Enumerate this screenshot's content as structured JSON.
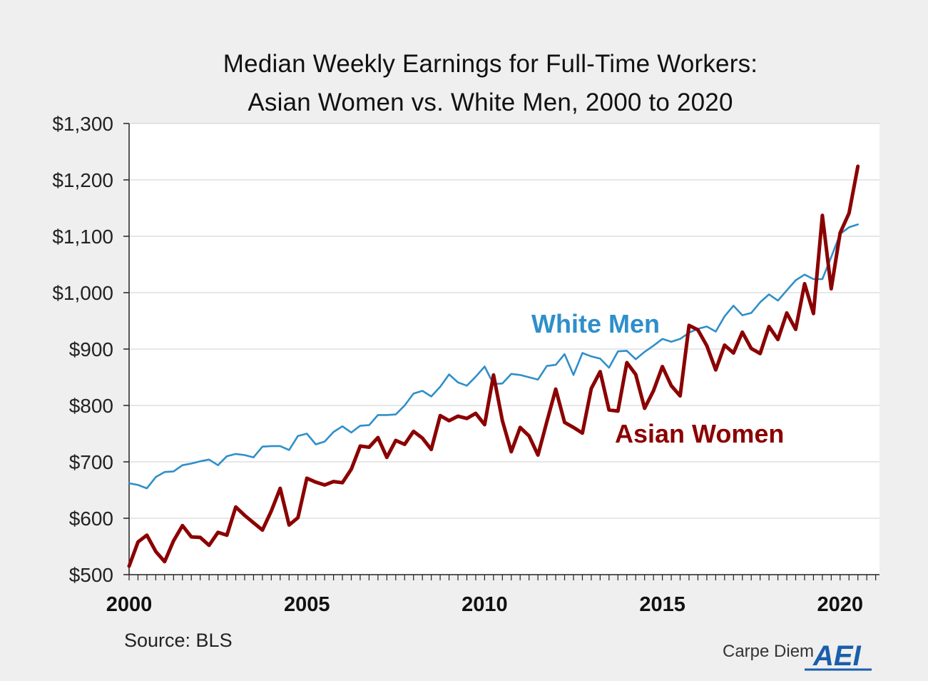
{
  "colors": {
    "white_men": "#2f8fc9",
    "asian_women": "#8b0000",
    "background": "#efefef",
    "plot_background": "#ffffff",
    "gridline": "#cfcfcf",
    "axis": "#222222",
    "logo": "#1a5eab"
  },
  "chart_data": {
    "type": "line",
    "title": "Median Weekly Earnings for Full-Time Workers:",
    "subtitle": "Asian Women vs. White Men, 2000 to 2020",
    "xlabel": "",
    "ylabel": "",
    "frequency": "quarterly",
    "x_start": 2000,
    "x_tick_labels": [
      "2000",
      "2005",
      "2010",
      "2015",
      "2020"
    ],
    "ylim": [
      500,
      1300
    ],
    "y_ticks": [
      500,
      600,
      700,
      800,
      900,
      1000,
      1100,
      1200,
      1300
    ],
    "y_tick_labels": [
      "$500",
      "$600",
      "$700",
      "$800",
      "$900",
      "$1,000",
      "$1,100",
      "$1,200",
      "$1,300"
    ],
    "grid": true,
    "series": [
      {
        "name": "White Men",
        "color": "#2f8fc9",
        "values": [
          662,
          659,
          653,
          673,
          682,
          683,
          694,
          697,
          701,
          704,
          694,
          710,
          714,
          712,
          708,
          727,
          728,
          728,
          721,
          746,
          750,
          731,
          736,
          753,
          763,
          752,
          764,
          765,
          783,
          783,
          784,
          800,
          821,
          826,
          816,
          833,
          855,
          841,
          835,
          851,
          869,
          838,
          839,
          856,
          854,
          850,
          846,
          870,
          872,
          891,
          854,
          893,
          887,
          883,
          867,
          896,
          897,
          882,
          895,
          906,
          918,
          913,
          918,
          929,
          936,
          940,
          931,
          958,
          977,
          960,
          964,
          983,
          997,
          986,
          1004,
          1022,
          1032,
          1024,
          1024,
          1063,
          1104,
          1116,
          1121
        ]
      },
      {
        "name": "Asian Women",
        "color": "#8b0000",
        "values": [
          515,
          558,
          570,
          541,
          523,
          560,
          587,
          567,
          566,
          552,
          575,
          570,
          620,
          605,
          592,
          579,
          613,
          653,
          588,
          601,
          671,
          664,
          659,
          665,
          663,
          687,
          728,
          726,
          743,
          708,
          738,
          731,
          754,
          742,
          722,
          782,
          773,
          781,
          777,
          786,
          766,
          854,
          773,
          718,
          761,
          746,
          712,
          771,
          829,
          770,
          761,
          751,
          830,
          860,
          792,
          790,
          876,
          855,
          795,
          826,
          869,
          835,
          817,
          942,
          934,
          906,
          863,
          907,
          893,
          930,
          901,
          892,
          940,
          917,
          964,
          935,
          1016,
          963,
          1137,
          1007,
          1106,
          1141,
          1224
        ]
      }
    ],
    "annotations": [
      {
        "text": "White Men",
        "series": "White Men"
      },
      {
        "text": "Asian Women",
        "series": "Asian Women"
      }
    ]
  },
  "footer": {
    "source": "Source: BLS",
    "brand": "Carpe Diem",
    "logo_text": "AEI"
  }
}
